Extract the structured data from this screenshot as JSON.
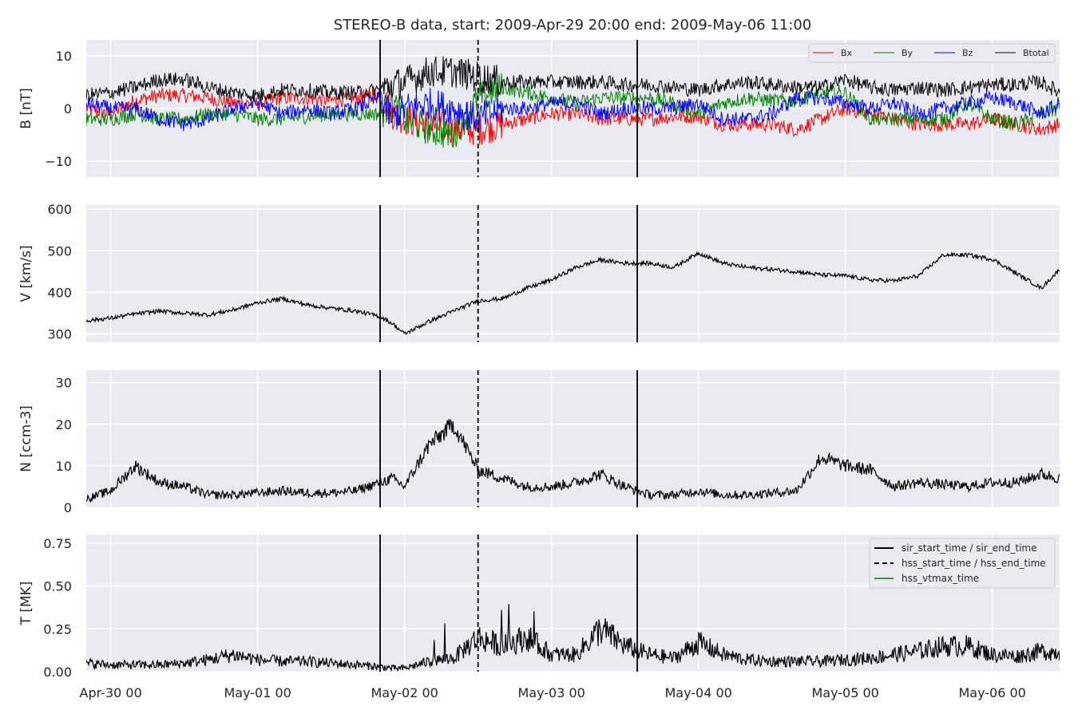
{
  "chart_data": {
    "type": "line",
    "title": "STEREO-B data, start: 2009-Apr-29 20:00  end: 2009-May-06 11:00",
    "x_range": [
      "2009-04-29 20:00",
      "2009-05-06 11:00"
    ],
    "x_tick_labels": [
      "Apr-30 00",
      "May-01 00",
      "May-02 00",
      "May-03 00",
      "May-04 00",
      "May-05 00",
      "May-06 00"
    ],
    "x_ticks": [
      "2009-04-30 00:00",
      "2009-05-01 00:00",
      "2009-05-02 00:00",
      "2009-05-03 00:00",
      "2009-05-04 00:00",
      "2009-05-05 00:00",
      "2009-05-06 00:00"
    ],
    "grid": true,
    "event_lines": [
      {
        "name": "sir_start_time / sir_end_time",
        "style": "solid",
        "times": [
          "2009-05-01 20:00",
          "2009-05-03 14:00"
        ]
      },
      {
        "name": "hss_start_time / hss_end_time",
        "style": "dashed",
        "times": [
          "2009-05-02 12:00"
        ]
      },
      {
        "name": "hss_vtmax_time",
        "style": "solid",
        "color": "#2ca02c",
        "times": []
      }
    ],
    "panels": [
      {
        "ylabel": "B [nT]",
        "ylim": [
          -13,
          13
        ],
        "yticks": [
          -10,
          0,
          10
        ],
        "ytick_labels": [
          "−10",
          "0",
          "10"
        ],
        "legend": "top-right",
        "series": [
          {
            "name": "Bx",
            "color": "#ff0000",
            "x": [
              -4,
              0,
              4,
              8,
              12,
              16,
              20,
              24,
              28,
              32,
              36,
              40,
              44,
              46,
              48,
              52,
              56,
              60,
              64,
              68,
              72,
              76,
              80,
              84,
              88,
              92,
              96,
              100,
              104,
              108,
              112,
              116,
              120,
              124,
              128,
              132,
              136,
              140,
              144,
              148,
              152,
              155
            ],
            "y": [
              0,
              -1,
              1.5,
              2.5,
              2.5,
              2,
              1,
              1,
              2,
              2,
              1.5,
              2,
              3,
              -1,
              -2,
              -3,
              -4,
              -4,
              -3,
              -2,
              -1,
              -1,
              -2,
              -2,
              -2,
              -1.5,
              -1.5,
              -3,
              -3,
              -3,
              -4,
              -2,
              0,
              -1,
              -2,
              -3,
              -3,
              -3,
              -2,
              -3,
              -4,
              -3
            ]
          },
          {
            "name": "By",
            "color": "#008000",
            "x": [
              -4,
              0,
              4,
              8,
              12,
              16,
              20,
              24,
              28,
              32,
              36,
              40,
              44,
              46,
              48,
              52,
              56,
              60,
              64,
              68,
              72,
              76,
              80,
              84,
              88,
              92,
              96,
              100,
              104,
              108,
              112,
              116,
              120,
              124,
              128,
              132,
              136,
              140,
              144,
              148,
              152,
              155
            ],
            "y": [
              -2,
              -2,
              -1,
              -2,
              -2,
              -1,
              -1,
              -2,
              -2,
              -1.5,
              -1,
              -1,
              -1,
              1,
              -2,
              -4,
              -5,
              2,
              4,
              3,
              2,
              1,
              2,
              2,
              2,
              1,
              -1,
              1,
              2,
              1.5,
              1.5,
              3,
              3,
              -2,
              -2,
              -2,
              -2,
              1,
              -2,
              -3,
              -1,
              0
            ]
          },
          {
            "name": "Bz",
            "color": "#0000ff",
            "x": [
              -4,
              0,
              4,
              8,
              12,
              16,
              20,
              24,
              28,
              32,
              36,
              40,
              44,
              46,
              48,
              52,
              56,
              60,
              64,
              68,
              72,
              76,
              80,
              84,
              88,
              92,
              96,
              100,
              104,
              108,
              112,
              116,
              120,
              124,
              128,
              132,
              136,
              140,
              144,
              148,
              152,
              155
            ],
            "y": [
              1,
              0,
              0,
              -2,
              -3,
              -2,
              0,
              1,
              -1,
              0,
              -1,
              0,
              2,
              -2,
              0,
              1,
              0,
              -2,
              0,
              0,
              1,
              1,
              -1,
              0,
              0,
              0,
              1,
              -2,
              -2,
              -1,
              2,
              2,
              1,
              0,
              1,
              -1,
              0,
              1,
              2,
              1,
              -1,
              1
            ]
          },
          {
            "name": "Btotal",
            "color": "#000000",
            "x": [
              -4,
              0,
              4,
              8,
              12,
              16,
              20,
              24,
              28,
              32,
              36,
              40,
              44,
              46,
              48,
              52,
              56,
              60,
              64,
              68,
              72,
              76,
              80,
              84,
              88,
              92,
              96,
              100,
              104,
              108,
              112,
              116,
              120,
              124,
              128,
              132,
              136,
              140,
              144,
              148,
              152,
              155
            ],
            "y": [
              2.5,
              3,
              4,
              5.5,
              5.5,
              4,
              3,
              2.5,
              3.5,
              3.5,
              3,
              3,
              3.5,
              4.5,
              5,
              7,
              7,
              6,
              5,
              5,
              5,
              5,
              5,
              4.5,
              4.5,
              4,
              3.5,
              4.5,
              5,
              4.5,
              4,
              4,
              5.5,
              4,
              3.5,
              4,
              3.5,
              4,
              4.5,
              4.5,
              5,
              3
            ]
          }
        ]
      },
      {
        "ylabel": "V [km/s]",
        "ylim": [
          280,
          610
        ],
        "yticks": [
          300,
          400,
          500,
          600
        ],
        "ytick_labels": [
          "300",
          "400",
          "500",
          "600"
        ],
        "series": [
          {
            "name": "V",
            "color": "#000000",
            "x": [
              -4,
              0,
              4,
              8,
              12,
              16,
              20,
              24,
              28,
              32,
              36,
              40,
              44,
              46,
              48,
              52,
              56,
              60,
              64,
              68,
              72,
              76,
              80,
              84,
              88,
              92,
              96,
              100,
              104,
              108,
              112,
              116,
              120,
              124,
              128,
              132,
              136,
              140,
              144,
              148,
              152,
              155
            ],
            "y": [
              332,
              338,
              348,
              355,
              350,
              346,
              358,
              375,
              385,
              370,
              362,
              355,
              342,
              325,
              300,
              330,
              355,
              380,
              385,
              410,
              430,
              460,
              478,
              470,
              470,
              460,
              495,
              470,
              460,
              455,
              450,
              442,
              440,
              430,
              428,
              440,
              490,
              490,
              480,
              445,
              410,
              455
            ]
          }
        ]
      },
      {
        "ylabel": "N [ccm-3]",
        "ylim": [
          0,
          33
        ],
        "yticks": [
          0,
          10,
          20,
          30
        ],
        "ytick_labels": [
          "0",
          "10",
          "20",
          "30"
        ],
        "series": [
          {
            "name": "N",
            "color": "#000000",
            "x": [
              -4,
              0,
              4,
              8,
              12,
              16,
              20,
              24,
              28,
              32,
              36,
              40,
              44,
              46,
              48,
              52,
              56,
              60,
              64,
              68,
              72,
              76,
              80,
              84,
              88,
              92,
              96,
              100,
              104,
              108,
              112,
              116,
              120,
              124,
              128,
              132,
              136,
              140,
              144,
              148,
              152,
              155
            ],
            "y": [
              2,
              4,
              10,
              6,
              5,
              3,
              3,
              3.5,
              4,
              3.5,
              3.5,
              4,
              6,
              7,
              5,
              15,
              20,
              9,
              7,
              5,
              5,
              6,
              8,
              5,
              3,
              3,
              4,
              3,
              3,
              3.5,
              4,
              12,
              10,
              9,
              5,
              6,
              5.5,
              5,
              6,
              6,
              8,
              7
            ]
          }
        ]
      },
      {
        "ylabel": "T [MK]",
        "ylim": [
          0,
          0.8
        ],
        "yticks": [
          0.0,
          0.25,
          0.5,
          0.75
        ],
        "ytick_labels": [
          "0.00",
          "0.25",
          "0.50",
          "0.75"
        ],
        "legend": "top-right",
        "series": [
          {
            "name": "T",
            "color": "#000000",
            "x": [
              -4,
              0,
              4,
              8,
              12,
              16,
              20,
              24,
              28,
              32,
              36,
              40,
              44,
              46,
              48,
              52,
              56,
              60,
              64,
              68,
              72,
              76,
              80,
              84,
              88,
              92,
              96,
              100,
              104,
              108,
              112,
              116,
              120,
              124,
              128,
              132,
              136,
              140,
              144,
              148,
              152,
              155
            ],
            "y": [
              0.05,
              0.04,
              0.04,
              0.04,
              0.05,
              0.07,
              0.1,
              0.07,
              0.06,
              0.06,
              0.05,
              0.04,
              0.03,
              0.02,
              0.02,
              0.06,
              0.08,
              0.2,
              0.15,
              0.2,
              0.1,
              0.1,
              0.25,
              0.15,
              0.1,
              0.08,
              0.17,
              0.1,
              0.07,
              0.06,
              0.06,
              0.06,
              0.07,
              0.08,
              0.1,
              0.12,
              0.15,
              0.15,
              0.1,
              0.09,
              0.12,
              0.11
            ]
          }
        ]
      }
    ],
    "legend_bottom": [
      "sir_start_time / sir_end_time",
      "hss_start_time / hss_end_time",
      "hss_vtmax_time"
    ]
  }
}
